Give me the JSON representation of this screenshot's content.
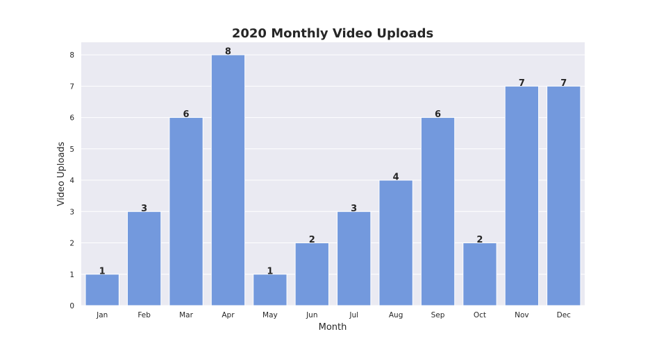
{
  "chart_data": {
    "type": "bar",
    "title": "2020 Monthly Video Uploads",
    "xlabel": "Month",
    "ylabel": "Video Uploads",
    "categories": [
      "Jan",
      "Feb",
      "Mar",
      "Apr",
      "May",
      "Jun",
      "Jul",
      "Aug",
      "Sep",
      "Oct",
      "Nov",
      "Dec"
    ],
    "values": [
      1,
      3,
      6,
      8,
      1,
      2,
      3,
      4,
      6,
      2,
      7,
      7
    ],
    "data_labels": [
      "1",
      "3",
      "6",
      "8",
      "1",
      "2",
      "3",
      "4",
      "6",
      "2",
      "7",
      "7"
    ],
    "ylim": [
      0,
      8.4
    ],
    "yticks": [
      0,
      1,
      2,
      3,
      4,
      5,
      6,
      7,
      8
    ],
    "ytick_labels": [
      "0",
      "1",
      "2",
      "3",
      "4",
      "5",
      "6",
      "7",
      "8"
    ],
    "grid": true,
    "colors": {
      "bar": "#7399dd",
      "plot_background": "#eaeaf2",
      "grid": "#ffffff",
      "text": "#262626"
    }
  }
}
